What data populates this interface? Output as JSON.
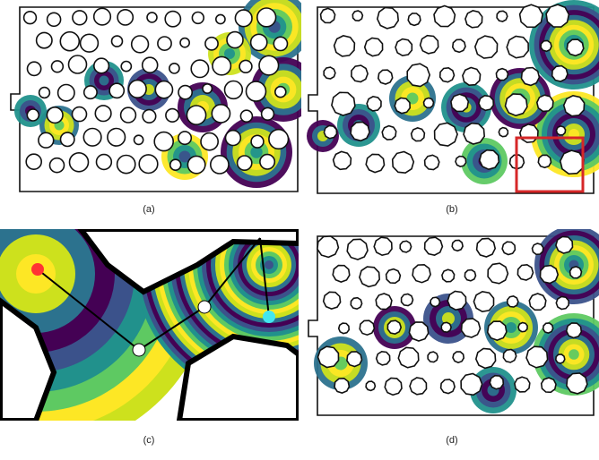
{
  "figure": {
    "panels": [
      {
        "id": "a",
        "caption": "(a)"
      },
      {
        "id": "b",
        "caption": "(b)"
      },
      {
        "id": "c",
        "caption": "(c)"
      },
      {
        "id": "d",
        "caption": "(d)"
      }
    ]
  },
  "colors": {
    "outline": "#111111",
    "fill_palette": [
      "#440154",
      "#3b528b",
      "#21918c",
      "#5ec962",
      "#fde725",
      "#cde11d",
      "#2c728e"
    ],
    "highlight_box": "#d62728",
    "marker_red": "#ff3333",
    "marker_cyan": "#44e6f0",
    "marker_white": "#ffffff"
  }
}
